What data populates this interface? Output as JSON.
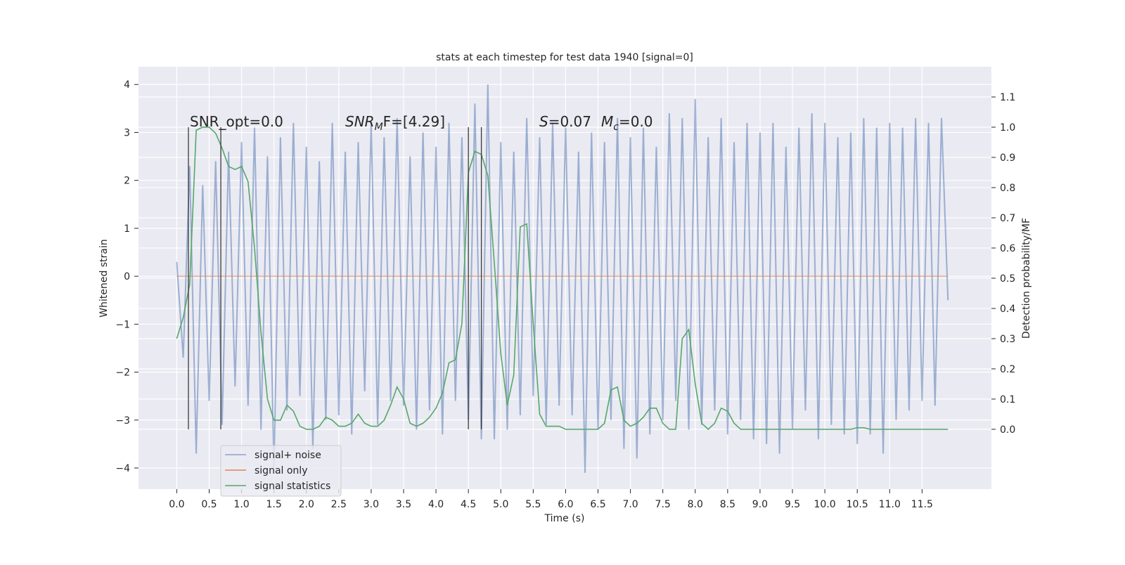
{
  "chart_data": {
    "type": "line",
    "title": "stats at each timestep for test data 1940 [signal=0]",
    "xlabel": "Time (s)",
    "ylabel": "Whitened strain",
    "y2label": "Detection probability/MF",
    "x": [
      0.0,
      0.1,
      0.2,
      0.3,
      0.4,
      0.5,
      0.6,
      0.7,
      0.8,
      0.9,
      1.0,
      1.1,
      1.2,
      1.3,
      1.4,
      1.5,
      1.6,
      1.7,
      1.8,
      1.9,
      2.0,
      2.1,
      2.2,
      2.3,
      2.4,
      2.5,
      2.6,
      2.7,
      2.8,
      2.9,
      3.0,
      3.1,
      3.2,
      3.3,
      3.4,
      3.5,
      3.6,
      3.7,
      3.8,
      3.9,
      4.0,
      4.1,
      4.2,
      4.3,
      4.4,
      4.5,
      4.6,
      4.7,
      4.8,
      4.9,
      5.0,
      5.1,
      5.2,
      5.3,
      5.4,
      5.5,
      5.6,
      5.7,
      5.8,
      5.9,
      6.0,
      6.1,
      6.2,
      6.3,
      6.4,
      6.5,
      6.6,
      6.7,
      6.8,
      6.9,
      7.0,
      7.1,
      7.2,
      7.3,
      7.4,
      7.5,
      7.6,
      7.7,
      7.8,
      7.9,
      8.0,
      8.1,
      8.2,
      8.3,
      8.4,
      8.5,
      8.6,
      8.7,
      8.8,
      8.9,
      9.0,
      9.1,
      9.2,
      9.3,
      9.4,
      9.5,
      9.6,
      9.7,
      9.8,
      9.9,
      10.0,
      10.1,
      10.2,
      10.3,
      10.4,
      10.5,
      10.6,
      10.7,
      10.8,
      10.9,
      11.0,
      11.1,
      11.2,
      11.3,
      11.4,
      11.5,
      11.6,
      11.7,
      11.8,
      11.9
    ],
    "series": [
      {
        "name": "signal+ noise",
        "color": "#4c72b0",
        "values": [
          0.3,
          -1.7,
          2.3,
          -3.7,
          1.9,
          -2.6,
          2.4,
          -3.1,
          2.6,
          -2.3,
          2.8,
          -2.7,
          3.1,
          -3.2,
          2.5,
          -4.0,
          2.9,
          -2.8,
          3.2,
          -2.5,
          2.7,
          -3.6,
          2.4,
          -3.0,
          3.2,
          -2.9,
          2.6,
          -3.3,
          2.8,
          -2.4,
          3.2,
          -3.1,
          2.9,
          -2.6,
          3.3,
          -2.7,
          2.5,
          -3.2,
          3.0,
          -2.8,
          2.7,
          -3.3,
          3.2,
          -2.6,
          2.9,
          -3.0,
          3.6,
          -3.4,
          4.0,
          -3.4,
          2.8,
          -3.2,
          2.6,
          -2.9,
          3.3,
          -2.5,
          2.9,
          -3.1,
          3.2,
          -2.7,
          3.1,
          -2.9,
          2.6,
          -4.1,
          3.0,
          -3.2,
          2.8,
          -3.0,
          3.3,
          -3.6,
          2.9,
          -3.8,
          3.1,
          -3.3,
          2.7,
          -3.0,
          3.4,
          -2.6,
          3.3,
          -3.2,
          3.7,
          -3.1,
          2.9,
          -2.8,
          3.3,
          -3.3,
          2.8,
          -3.0,
          3.2,
          -3.4,
          3.0,
          -3.5,
          3.2,
          -3.7,
          2.7,
          -3.2,
          3.1,
          -2.8,
          3.4,
          -3.4,
          3.2,
          -3.1,
          2.9,
          -3.3,
          3.0,
          -3.5,
          3.3,
          -3.3,
          3.1,
          -3.7,
          3.2,
          -3.0,
          3.1,
          -2.8,
          3.3,
          -2.6,
          3.2,
          -2.7,
          3.3,
          -0.5
        ]
      },
      {
        "name": "signal only",
        "color": "#dd8452",
        "values": [
          0,
          0,
          0,
          0,
          0,
          0,
          0,
          0,
          0,
          0,
          0,
          0,
          0,
          0,
          0,
          0,
          0,
          0,
          0,
          0,
          0,
          0,
          0,
          0,
          0,
          0,
          0,
          0,
          0,
          0,
          0,
          0,
          0,
          0,
          0,
          0,
          0,
          0,
          0,
          0,
          0,
          0,
          0,
          0,
          0,
          0,
          0,
          0,
          0,
          0,
          0,
          0,
          0,
          0,
          0,
          0,
          0,
          0,
          0,
          0,
          0,
          0,
          0,
          0,
          0,
          0,
          0,
          0,
          0,
          0,
          0,
          0,
          0,
          0,
          0,
          0,
          0,
          0,
          0,
          0,
          0,
          0,
          0,
          0,
          0,
          0,
          0,
          0,
          0,
          0,
          0,
          0,
          0,
          0,
          0,
          0,
          0,
          0,
          0,
          0,
          0,
          0,
          0,
          0,
          0,
          0,
          0,
          0,
          0,
          0,
          0,
          0,
          0,
          0,
          0,
          0,
          0,
          0,
          0,
          0
        ]
      },
      {
        "name": "signal statistics",
        "color": "#55a868",
        "axis": "y2",
        "values": [
          0.3,
          0.37,
          0.48,
          0.99,
          1.0,
          1.0,
          0.98,
          0.93,
          0.87,
          0.86,
          0.87,
          0.82,
          0.6,
          0.32,
          0.1,
          0.03,
          0.03,
          0.08,
          0.06,
          0.01,
          0,
          0,
          0.01,
          0.04,
          0.03,
          0.01,
          0.01,
          0.02,
          0.05,
          0.02,
          0.01,
          0.01,
          0.03,
          0.08,
          0.14,
          0.1,
          0.02,
          0.01,
          0.02,
          0.04,
          0.07,
          0.12,
          0.22,
          0.23,
          0.35,
          0.85,
          0.92,
          0.91,
          0.84,
          0.55,
          0.25,
          0.08,
          0.18,
          0.67,
          0.68,
          0.35,
          0.05,
          0.01,
          0.01,
          0.01,
          0,
          0,
          0,
          0,
          0,
          0,
          0.02,
          0.13,
          0.14,
          0.03,
          0.01,
          0.02,
          0.04,
          0.07,
          0.07,
          0.02,
          0,
          0,
          0.3,
          0.33,
          0.15,
          0.02,
          0,
          0.02,
          0.07,
          0.06,
          0.02,
          0,
          0,
          0,
          0,
          0,
          0,
          0,
          0,
          0,
          0,
          0,
          0,
          0,
          0,
          0,
          0,
          0,
          0,
          0.005,
          0.005,
          0,
          0,
          0,
          0,
          0,
          0,
          0,
          0,
          0,
          0,
          0,
          0,
          0
        ]
      }
    ],
    "vlines": [
      0.18,
      0.68,
      4.5,
      4.7
    ],
    "vline_color": "#3a3a3a",
    "vline_range": [
      0,
      1
    ],
    "annotations": [
      {
        "parts": [
          {
            "text": "SNR_opt=0.0"
          }
        ]
      },
      {
        "parts": [
          {
            "text": "SNR",
            "style": "italic"
          },
          {
            "text": "M",
            "style": "sub"
          },
          {
            "text": "F=[4.29]"
          }
        ]
      },
      {
        "parts": [
          {
            "text": "S",
            "style": "italic"
          },
          {
            "text": "=0.07"
          },
          {
            "text": "M",
            "style": "italic"
          },
          {
            "text": "c",
            "style": "sub"
          },
          {
            "text": "=0.0"
          }
        ]
      }
    ],
    "xlim": [
      -0.59,
      12.57
    ],
    "ylim": [
      -4.44,
      4.37
    ],
    "y2lim": [
      -0.198,
      1.2
    ],
    "xticks": [
      {
        "value": 0,
        "label": "0.0"
      },
      0.5,
      {
        "value": 1,
        "label": "1.0"
      },
      1.5,
      {
        "value": 2,
        "label": "2.0"
      },
      2.5,
      {
        "value": 3,
        "label": "3.0"
      },
      3.5,
      {
        "value": 4,
        "label": "4.0"
      },
      4.5,
      {
        "value": 5,
        "label": "5.0"
      },
      5.5,
      {
        "value": 6,
        "label": "6.0"
      },
      6.5,
      {
        "value": 7,
        "label": "7.0"
      },
      7.5,
      {
        "value": 8,
        "label": "8.0"
      },
      8.5,
      {
        "value": 9,
        "label": "9.0"
      },
      9.5,
      {
        "value": 10,
        "label": "10.0"
      },
      10.5,
      {
        "value": 11,
        "label": "11.0"
      },
      11.5
    ],
    "yticks": [
      {
        "value": -4,
        "label": "−4"
      },
      {
        "value": -3,
        "label": "−3"
      },
      {
        "value": -2,
        "label": "−2"
      },
      {
        "value": -1,
        "label": "−1"
      },
      0,
      1,
      2,
      3,
      4
    ],
    "y2ticks": [
      {
        "value": 0,
        "label": "0.0"
      },
      0.1,
      0.2,
      0.3,
      0.4,
      0.5,
      0.6,
      0.7,
      0.8,
      0.9,
      {
        "value": 1,
        "label": "1.0"
      },
      1.1
    ],
    "grid": true,
    "legend": "lower left"
  }
}
